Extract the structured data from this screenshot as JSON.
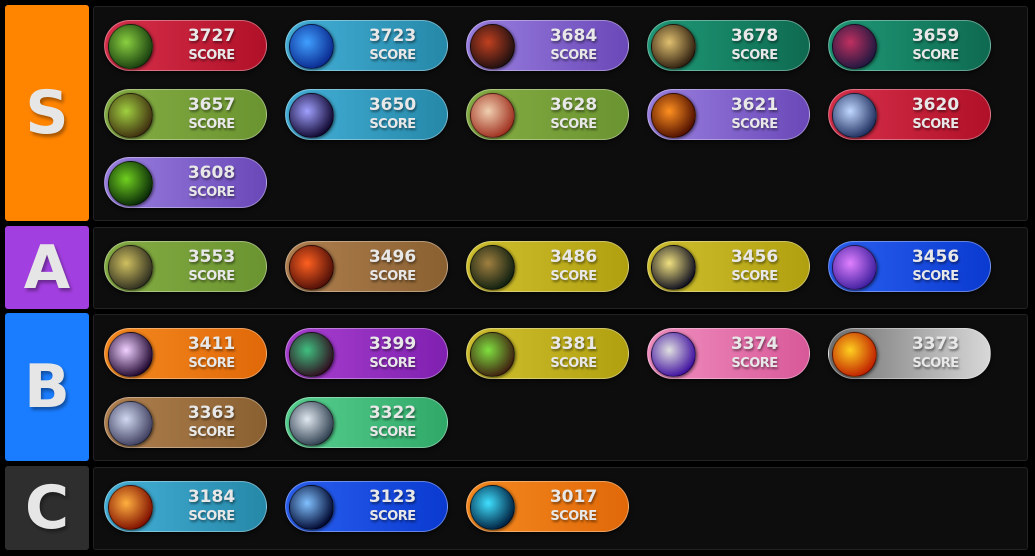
{
  "score_label": "SCORE",
  "tier_colors": {
    "S": "#ff8400",
    "A": "#a23fe0",
    "B": "#1a7dff",
    "C": "#2e2e2e"
  },
  "pill_colors": {
    "red": [
      "#d8304c",
      "#b01028"
    ],
    "teal": [
      "#45b0d8",
      "#2588a8"
    ],
    "purple": [
      "#9a80e0",
      "#6a48b8"
    ],
    "seagreen": [
      "#1f9a78",
      "#0e6a50"
    ],
    "olive": [
      "#86ad44",
      "#6a9430"
    ],
    "brown": [
      "#b08050",
      "#8a6030"
    ],
    "yellow": [
      "#d0c030",
      "#b0a010"
    ],
    "blue": [
      "#2a60f0",
      "#0a3ad0"
    ],
    "orange": [
      "#f58a20",
      "#e06808"
    ],
    "magenta": [
      "#a840d0",
      "#8020b0"
    ],
    "pink": [
      "#f090c0",
      "#d85898"
    ],
    "gray": [
      "#707070",
      "#d8d8d8"
    ],
    "green": [
      "#58d090",
      "#30a868"
    ]
  },
  "tiers": [
    {
      "label": "S",
      "items": [
        {
          "score": "3727",
          "color": "red",
          "icon": "green-skull-icon",
          "icon_colors": [
            "#8ad040",
            "#1a4010"
          ]
        },
        {
          "score": "3723",
          "color": "teal",
          "icon": "blue-eye-rune-icon",
          "icon_colors": [
            "#40a0ff",
            "#0a2a90"
          ]
        },
        {
          "score": "3684",
          "color": "purple",
          "icon": "demon-face-icon",
          "icon_colors": [
            "#c04020",
            "#201010"
          ]
        },
        {
          "score": "3678",
          "color": "seagreen",
          "icon": "golden-hood-icon",
          "icon_colors": [
            "#e0c070",
            "#302010"
          ]
        },
        {
          "score": "3659",
          "color": "seagreen",
          "icon": "dragon-head-icon",
          "icon_colors": [
            "#c03060",
            "#201840"
          ]
        },
        {
          "score": "3657",
          "color": "olive",
          "icon": "elf-hunter-icon",
          "icon_colors": [
            "#a0d040",
            "#403010"
          ]
        },
        {
          "score": "3650",
          "color": "teal",
          "icon": "arcane-sparkle-icon",
          "icon_colors": [
            "#a0a0ff",
            "#100830"
          ]
        },
        {
          "score": "3628",
          "color": "olive",
          "icon": "bandaged-fist-icon",
          "icon_colors": [
            "#f0d0b0",
            "#a03020"
          ]
        },
        {
          "score": "3621",
          "color": "purple",
          "icon": "fire-slash-icon",
          "icon_colors": [
            "#ff9020",
            "#501000"
          ]
        },
        {
          "score": "3620",
          "color": "red",
          "icon": "frost-skull-icon",
          "icon_colors": [
            "#c0d8ff",
            "#203060"
          ]
        },
        {
          "score": "3608",
          "color": "purple",
          "icon": "green-maw-icon",
          "icon_colors": [
            "#70d020",
            "#0a2a08"
          ]
        }
      ]
    },
    {
      "label": "A",
      "items": [
        {
          "score": "3553",
          "color": "olive",
          "icon": "armored-warrior-icon",
          "icon_colors": [
            "#d0c060",
            "#303020"
          ]
        },
        {
          "score": "3496",
          "color": "brown",
          "icon": "flame-helm-icon",
          "icon_colors": [
            "#ff6020",
            "#501008"
          ]
        },
        {
          "score": "3486",
          "color": "yellow",
          "icon": "hooded-rogue-icon",
          "icon_colors": [
            "#a08040",
            "#102010"
          ]
        },
        {
          "score": "3456",
          "color": "yellow",
          "icon": "golden-spear-icon",
          "icon_colors": [
            "#f0e080",
            "#101020"
          ]
        },
        {
          "score": "3456",
          "color": "blue",
          "icon": "holy-hammer-icon",
          "icon_colors": [
            "#e080ff",
            "#4020a0"
          ]
        }
      ]
    },
    {
      "label": "B",
      "items": [
        {
          "score": "3411",
          "color": "orange",
          "icon": "shadow-burst-icon",
          "icon_colors": [
            "#f0d0ff",
            "#200830"
          ]
        },
        {
          "score": "3399",
          "color": "magenta",
          "icon": "green-demon-icon",
          "icon_colors": [
            "#40c080",
            "#301020"
          ]
        },
        {
          "score": "3381",
          "color": "yellow",
          "icon": "nature-crossed-blades-icon",
          "icon_colors": [
            "#80e040",
            "#402010"
          ]
        },
        {
          "score": "3374",
          "color": "pink",
          "icon": "war-hammer-icon",
          "icon_colors": [
            "#e0e0e0",
            "#4010a0"
          ]
        },
        {
          "score": "3373",
          "color": "gray",
          "icon": "burning-skull-icon",
          "icon_colors": [
            "#ffd020",
            "#c02000"
          ]
        },
        {
          "score": "3363",
          "color": "brown",
          "icon": "steel-gauntlet-icon",
          "icon_colors": [
            "#d0d8f0",
            "#404060"
          ]
        },
        {
          "score": "3322",
          "color": "green",
          "icon": "beast-face-icon",
          "icon_colors": [
            "#e0e8f0",
            "#304050"
          ]
        }
      ]
    },
    {
      "label": "C",
      "items": [
        {
          "score": "3184",
          "color": "teal",
          "icon": "fireball-icon",
          "icon_colors": [
            "#ffb040",
            "#801000"
          ]
        },
        {
          "score": "3123",
          "color": "blue",
          "icon": "lightning-icon",
          "icon_colors": [
            "#80c0ff",
            "#000830"
          ]
        },
        {
          "score": "3017",
          "color": "orange",
          "icon": "frost-claw-icon",
          "icon_colors": [
            "#40e0ff",
            "#002040"
          ]
        }
      ]
    }
  ]
}
